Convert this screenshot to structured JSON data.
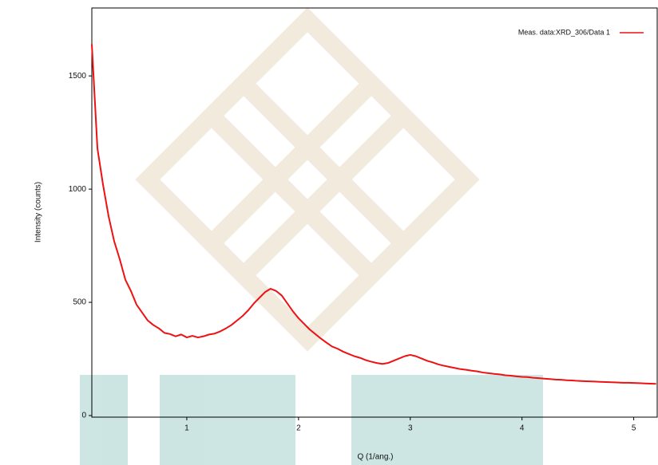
{
  "chart_data": {
    "type": "line",
    "y_label": "Intensity (counts)",
    "x_label": "Q (1/ang.)",
    "xlim": [
      0.15,
      5.21
    ],
    "ylim": [
      0,
      1800
    ],
    "xticks": [
      1,
      2,
      3,
      4,
      5
    ],
    "yticks": [
      0,
      500,
      1000,
      1500
    ],
    "legend": "top-right",
    "x": [
      0.15,
      0.2,
      0.25,
      0.3,
      0.35,
      0.4,
      0.45,
      0.5,
      0.55,
      0.6,
      0.65,
      0.7,
      0.75,
      0.8,
      0.85,
      0.9,
      0.95,
      1.0,
      1.05,
      1.1,
      1.15,
      1.2,
      1.25,
      1.3,
      1.35,
      1.4,
      1.45,
      1.5,
      1.55,
      1.6,
      1.65,
      1.7,
      1.75,
      1.8,
      1.85,
      1.9,
      1.95,
      2.0,
      2.05,
      2.1,
      2.15,
      2.2,
      2.25,
      2.3,
      2.35,
      2.4,
      2.45,
      2.5,
      2.55,
      2.6,
      2.65,
      2.7,
      2.75,
      2.8,
      2.85,
      2.9,
      2.95,
      3.0,
      3.05,
      3.1,
      3.15,
      3.2,
      3.25,
      3.3,
      3.35,
      3.4,
      3.45,
      3.5,
      3.55,
      3.6,
      3.65,
      3.7,
      3.75,
      3.8,
      3.85,
      3.9,
      3.95,
      4.0,
      4.05,
      4.1,
      4.15,
      4.2,
      4.25,
      4.3,
      4.35,
      4.4,
      4.45,
      4.5,
      4.55,
      4.6,
      4.65,
      4.7,
      4.75,
      4.8,
      4.85,
      4.9,
      4.95,
      5.0,
      5.05,
      5.1,
      5.15,
      5.2
    ],
    "series": [
      {
        "name": "Meas. data:XRD_306/Data 1",
        "color": "#ee1111",
        "values": [
          1640,
          1180,
          1020,
          880,
          770,
          690,
          600,
          550,
          490,
          455,
          420,
          400,
          385,
          365,
          360,
          350,
          358,
          345,
          352,
          345,
          350,
          358,
          362,
          372,
          385,
          400,
          420,
          440,
          465,
          495,
          520,
          545,
          560,
          550,
          530,
          495,
          460,
          430,
          405,
          380,
          360,
          340,
          322,
          305,
          295,
          282,
          272,
          262,
          255,
          245,
          238,
          232,
          228,
          232,
          242,
          252,
          262,
          268,
          262,
          252,
          242,
          235,
          226,
          220,
          215,
          210,
          205,
          202,
          198,
          195,
          190,
          187,
          184,
          182,
          178,
          176,
          173,
          171,
          170,
          167,
          165,
          163,
          161,
          159,
          158,
          156,
          155,
          153,
          152,
          151,
          150,
          149,
          148,
          147,
          146,
          145,
          145,
          144,
          143,
          142,
          141,
          140
        ]
      }
    ]
  }
}
